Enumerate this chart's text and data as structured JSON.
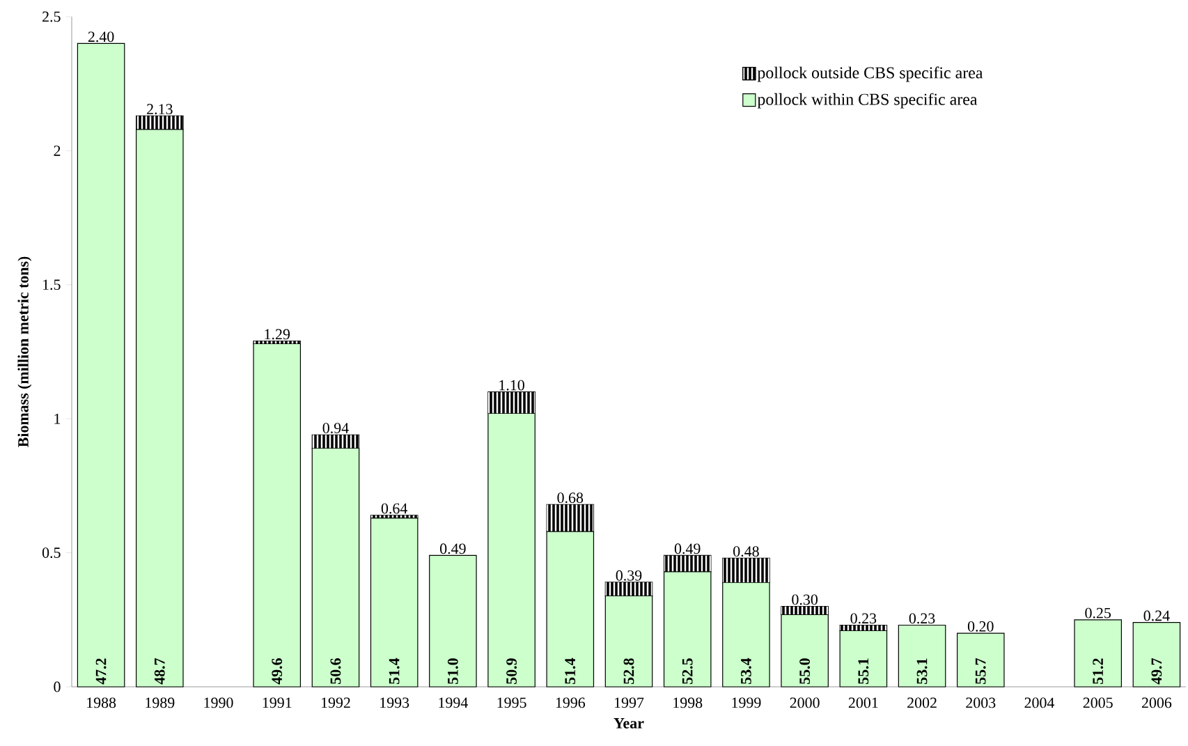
{
  "chart_data": {
    "type": "bar",
    "stacked": true,
    "xlabel": "Year",
    "ylabel": "Biomass (million metric tons)",
    "categories": [
      "1988",
      "1989",
      "1990",
      "1991",
      "1992",
      "1993",
      "1994",
      "1995",
      "1996",
      "1997",
      "1998",
      "1999",
      "2000",
      "2001",
      "2002",
      "2003",
      "2004",
      "2005",
      "2006"
    ],
    "series": [
      {
        "name": "pollock within CBS specific area",
        "color": "#ccffcc",
        "values": [
          2.4,
          2.08,
          null,
          1.28,
          0.89,
          0.63,
          0.49,
          1.02,
          0.58,
          0.34,
          0.43,
          0.39,
          0.27,
          0.21,
          0.23,
          0.2,
          null,
          0.25,
          0.24
        ]
      },
      {
        "name": "pollock outside CBS specific area",
        "color": "#000000",
        "values": [
          0,
          0.05,
          null,
          0.01,
          0.05,
          0.01,
          0,
          0.08,
          0.1,
          0.05,
          0.06,
          0.09,
          0.03,
          0.02,
          0,
          0,
          null,
          0,
          0
        ]
      }
    ],
    "totals": [
      "2.40",
      "2.13",
      null,
      "1.29",
      "0.94",
      "0.64",
      "0.49",
      "1.10",
      "0.68",
      "0.39",
      "0.49",
      "0.48",
      "0.30",
      "0.23",
      "0.23",
      "0.20",
      null,
      "0.25",
      "0.24"
    ],
    "annotations": [
      {
        "text": "47.2",
        "x": "1988",
        "y": 0
      },
      {
        "text": "48.7",
        "x": "1989",
        "y": 0
      },
      {
        "text": "49.6",
        "x": "1991",
        "y": 0
      },
      {
        "text": "50.6",
        "x": "1992",
        "y": 0
      },
      {
        "text": "51.4",
        "x": "1993",
        "y": 0
      },
      {
        "text": "51.0",
        "x": "1994",
        "y": 0
      },
      {
        "text": "50.9",
        "x": "1995",
        "y": 0
      },
      {
        "text": "51.4",
        "x": "1996",
        "y": 0
      },
      {
        "text": "52.8",
        "x": "1997",
        "y": 0
      },
      {
        "text": "52.5",
        "x": "1998",
        "y": 0
      },
      {
        "text": "53.4",
        "x": "1999",
        "y": 0
      },
      {
        "text": "55.0",
        "x": "2000",
        "y": 0
      },
      {
        "text": "55.1",
        "x": "2001",
        "y": 0
      },
      {
        "text": "53.1",
        "x": "2002",
        "y": 0
      },
      {
        "text": "55.7",
        "x": "2003",
        "y": 0
      },
      {
        "text": "51.2",
        "x": "2005",
        "y": 0
      },
      {
        "text": "49.7",
        "x": "2006",
        "y": 0
      }
    ],
    "ylim": [
      0,
      2.5
    ],
    "yticks": [
      0,
      0.5,
      1,
      1.5,
      2,
      2.5
    ],
    "legend": "top right",
    "grid": false
  }
}
